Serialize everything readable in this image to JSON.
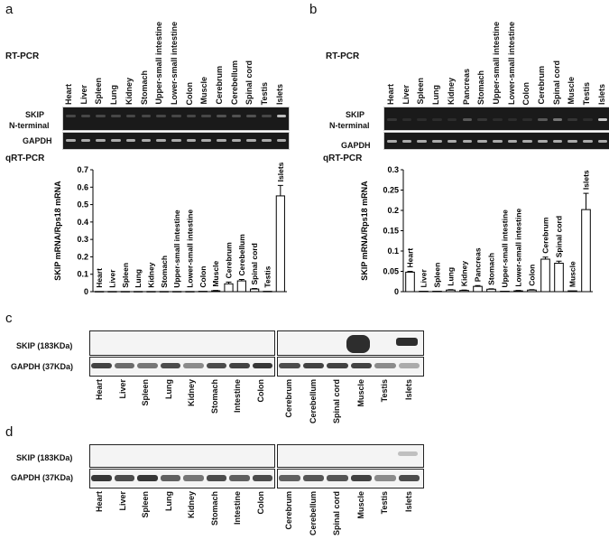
{
  "panels": {
    "a": {
      "letter": "a",
      "rt_pcr_title": "RT-PCR",
      "qrt_pcr_title": "qRT-PCR",
      "lanes": [
        "Heart",
        "Liver",
        "Spleen",
        "Lung",
        "Kidney",
        "Stomach",
        "Upper-small intestine",
        "Lower-small intestine",
        "Colon",
        "Muscle",
        "Cerebrum",
        "Cerebellum",
        "Spinal cord",
        "Testis",
        "Islets"
      ],
      "gel_rows": [
        "SKIP\nN-terminal",
        "GAPDH"
      ],
      "gel_row_1": "SKIP",
      "gel_row_1b": "N-terminal",
      "gel_row_2": "GAPDH"
    },
    "b": {
      "letter": "b",
      "rt_pcr_title": "RT-PCR",
      "qrt_pcr_title": "qRT-PCR",
      "lanes": [
        "Heart",
        "Liver",
        "Spleen",
        "Lung",
        "Kidney",
        "Pancreas",
        "Stomach",
        "Upper-small intestine",
        "Lower-small intestine",
        "Colon",
        "Cerebrum",
        "Spinal cord",
        "Muscle",
        "Testis",
        "Islets"
      ],
      "gel_row_1": "SKIP",
      "gel_row_1b": "N-terminal",
      "gel_row_2": "GAPDH"
    },
    "c": {
      "letter": "c",
      "row_1": "SKIP (183KDa)",
      "row_2": "GAPDH (37KDa)",
      "lanes_left": [
        "Heart",
        "Liver",
        "Spleen",
        "Lung",
        "Kidney",
        "Stomach",
        "Intestine",
        "Colon"
      ],
      "lanes_right": [
        "Cerebrum",
        "Cerebellum",
        "Spinal cord",
        "Muscle",
        "Testis",
        "Islets"
      ]
    },
    "d": {
      "letter": "d",
      "row_1": "SKIP (183KDa)",
      "row_2": "GAPDH (37KDa)",
      "lanes_left": [
        "Heart",
        "Liver",
        "Spleen",
        "Lung",
        "Kidney",
        "Stomach",
        "Intestine",
        "Colon"
      ],
      "lanes_right": [
        "Cerebrum",
        "Cerebellum",
        "Spinal cord",
        "Muscle",
        "Testis",
        "Islets"
      ]
    }
  },
  "chart_data": [
    {
      "type": "bar",
      "panel": "a",
      "ylabel": "SKIP mRNA/Rps18 mRNA",
      "ylim": [
        0,
        0.7
      ],
      "yticks": [
        "0",
        "0.1",
        "0.2",
        "0.3",
        "0.4",
        "0.5",
        "0.6",
        "0.7"
      ],
      "categories": [
        "Heart",
        "Liver",
        "Spleen",
        "Lung",
        "Kidney",
        "Stomach",
        "Upper-small intestine",
        "Lower-small intestine",
        "Colon",
        "Muscle",
        "Cerebrum",
        "Cerebellum",
        "Spinal cord",
        "Testis",
        "Islets"
      ],
      "values": [
        0.001,
        0.001,
        0.001,
        0.001,
        0.001,
        0.001,
        0.001,
        0.001,
        0.002,
        0.005,
        0.045,
        0.062,
        0.015,
        0.002,
        0.55
      ],
      "errors": [
        0,
        0,
        0,
        0,
        0,
        0,
        0,
        0,
        0,
        0.002,
        0.01,
        0.008,
        0.003,
        0,
        0.06
      ]
    },
    {
      "type": "bar",
      "panel": "b",
      "ylabel": "SKIP mRNA/Rps18 mRNA",
      "ylim": [
        0,
        0.3
      ],
      "yticks": [
        "0",
        "0.05",
        "0.1",
        "0.15",
        "0.2",
        "0.25",
        "0.3"
      ],
      "categories": [
        "Heart",
        "Liver",
        "Spleen",
        "Lung",
        "Kidney",
        "Pancreas",
        "Stomach",
        "Upper-small intestine",
        "Lower-small intestine",
        "Colon",
        "Cerebrum",
        "Spinal cord",
        "Muscle",
        "Islets"
      ],
      "values": [
        0.048,
        0.001,
        0.001,
        0.004,
        0.003,
        0.013,
        0.006,
        0.001,
        0.002,
        0.004,
        0.08,
        0.07,
        0.002,
        0.202
      ],
      "errors": [
        0.002,
        0,
        0,
        0.001,
        0.001,
        0.002,
        0.001,
        0,
        0.001,
        0.001,
        0.005,
        0.005,
        0,
        0.04
      ]
    }
  ]
}
